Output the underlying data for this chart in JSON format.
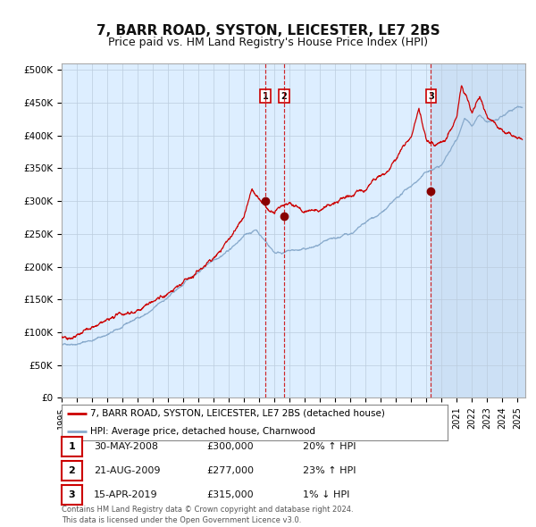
{
  "title": "7, BARR ROAD, SYSTON, LEICESTER, LE7 2BS",
  "subtitle": "Price paid vs. HM Land Registry's House Price Index (HPI)",
  "ylabel_values": [
    "£0",
    "£50K",
    "£100K",
    "£150K",
    "£200K",
    "£250K",
    "£300K",
    "£350K",
    "£400K",
    "£450K",
    "£500K"
  ],
  "ylim": [
    0,
    500000
  ],
  "xlim_start": 1995.0,
  "xlim_end": 2025.5,
  "red_line_color": "#cc0000",
  "blue_line_color": "#88aacc",
  "bg_color": "#ddeeff",
  "shade_color": "#cce0f5",
  "grid_color": "#bbccdd",
  "sale_marker_color": "#880000",
  "dashed_line_color": "#cc0000",
  "transactions": [
    {
      "num": 1,
      "date_x": 2008.41,
      "price": 300000,
      "label": "30-MAY-2008",
      "price_label": "£300,000",
      "pct": "20%",
      "direction": "↑"
    },
    {
      "num": 2,
      "date_x": 2009.64,
      "price": 277000,
      "label": "21-AUG-2009",
      "price_label": "£277,000",
      "pct": "23%",
      "direction": "↑"
    },
    {
      "num": 3,
      "date_x": 2019.29,
      "price": 315000,
      "label": "15-APR-2019",
      "price_label": "£315,000",
      "pct": "1%",
      "direction": "↓"
    }
  ],
  "legend_line1": "7, BARR ROAD, SYSTON, LEICESTER, LE7 2BS (detached house)",
  "legend_line2": "HPI: Average price, detached house, Charnwood",
  "footer": "Contains HM Land Registry data © Crown copyright and database right 2024.\nThis data is licensed under the Open Government Licence v3.0.",
  "title_fontsize": 11,
  "subtitle_fontsize": 9
}
